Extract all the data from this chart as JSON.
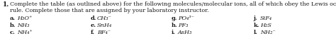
{
  "number": "1.",
  "line1": "Complete the table (as outlined above) for the following molecules/molecular ions, all of which obey the Lewis octet",
  "line2": "rule. Complete those that are assigned by your laboratory instructor.",
  "col_labels": [
    "a.",
    "b.",
    "c.",
    "d.",
    "e.",
    "f.",
    "g.",
    "h.",
    "i.",
    "j.",
    "k.",
    "l."
  ],
  "molecules": [
    [
      "H₃O⁺",
      "NH₃",
      "NH₄⁺"
    ],
    [
      "CH₃⁻",
      "SnH₄",
      "BF₄⁻"
    ],
    [
      "PO₄³⁻",
      "PF₃",
      "AsH₃"
    ],
    [
      "SiF₄",
      "H₂S",
      "NH₂⁻"
    ]
  ],
  "font_size_header": 5.8,
  "font_size_number": 6.2,
  "font_size_items": 5.9,
  "text_color": "#1a1a1a",
  "background_color": "#ffffff",
  "figwidth": 4.74,
  "figheight": 0.75,
  "dpi": 100
}
